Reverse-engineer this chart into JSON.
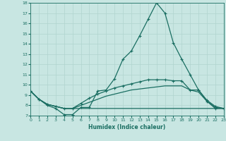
{
  "xlabel": "Humidex (Indice chaleur)",
  "xlim": [
    0,
    23
  ],
  "ylim": [
    7,
    18
  ],
  "xticks": [
    0,
    1,
    2,
    3,
    4,
    5,
    6,
    7,
    8,
    9,
    10,
    11,
    12,
    13,
    14,
    15,
    16,
    17,
    18,
    19,
    20,
    21,
    22,
    23
  ],
  "yticks": [
    7,
    8,
    9,
    10,
    11,
    12,
    13,
    14,
    15,
    16,
    17,
    18
  ],
  "bg_color": "#c8e6e2",
  "line_color": "#1a6e62",
  "grid_color": "#b0d4cf",
  "line1_x": [
    0,
    1,
    2,
    3,
    4,
    5,
    6,
    7,
    8,
    9,
    10,
    11,
    12,
    13,
    14,
    15,
    16,
    17,
    18,
    19,
    20,
    21,
    22,
    23
  ],
  "line1_y": [
    9.4,
    8.6,
    8.0,
    7.7,
    7.1,
    7.1,
    7.8,
    7.8,
    9.4,
    9.5,
    10.6,
    12.5,
    13.3,
    14.8,
    16.4,
    18.0,
    17.0,
    14.1,
    12.5,
    11.0,
    9.5,
    8.4,
    7.7,
    7.7
  ],
  "line2_x": [
    0,
    1,
    2,
    3,
    4,
    5,
    6,
    7,
    8,
    9,
    10,
    11,
    12,
    13,
    14,
    15,
    16,
    17,
    18,
    19,
    20,
    21,
    22,
    23
  ],
  "line2_y": [
    9.4,
    8.6,
    8.1,
    7.9,
    7.7,
    7.7,
    8.2,
    8.7,
    9.1,
    9.4,
    9.7,
    9.9,
    10.1,
    10.3,
    10.5,
    10.5,
    10.5,
    10.4,
    10.4,
    9.5,
    9.5,
    8.5,
    7.9,
    7.7
  ],
  "line3_x": [
    0,
    1,
    2,
    3,
    4,
    5,
    6,
    7,
    8,
    9,
    10,
    11,
    12,
    13,
    14,
    15,
    16,
    17,
    18,
    19,
    20,
    21,
    22,
    23
  ],
  "line3_y": [
    9.4,
    8.6,
    8.1,
    7.9,
    7.7,
    7.7,
    8.0,
    8.3,
    8.6,
    8.9,
    9.1,
    9.3,
    9.5,
    9.6,
    9.7,
    9.8,
    9.9,
    9.9,
    9.9,
    9.5,
    9.3,
    8.4,
    7.8,
    7.7
  ],
  "line4_x": [
    0,
    1,
    2,
    3,
    4,
    5,
    6,
    7,
    8,
    9,
    10,
    11,
    12,
    13,
    14,
    15,
    16,
    17,
    18,
    19,
    20,
    21,
    22,
    23
  ],
  "line4_y": [
    9.4,
    8.6,
    8.1,
    7.9,
    7.7,
    7.7,
    7.7,
    7.7,
    7.7,
    7.7,
    7.7,
    7.7,
    7.7,
    7.7,
    7.7,
    7.7,
    7.7,
    7.7,
    7.7,
    7.7,
    7.7,
    7.7,
    7.7,
    7.7
  ]
}
